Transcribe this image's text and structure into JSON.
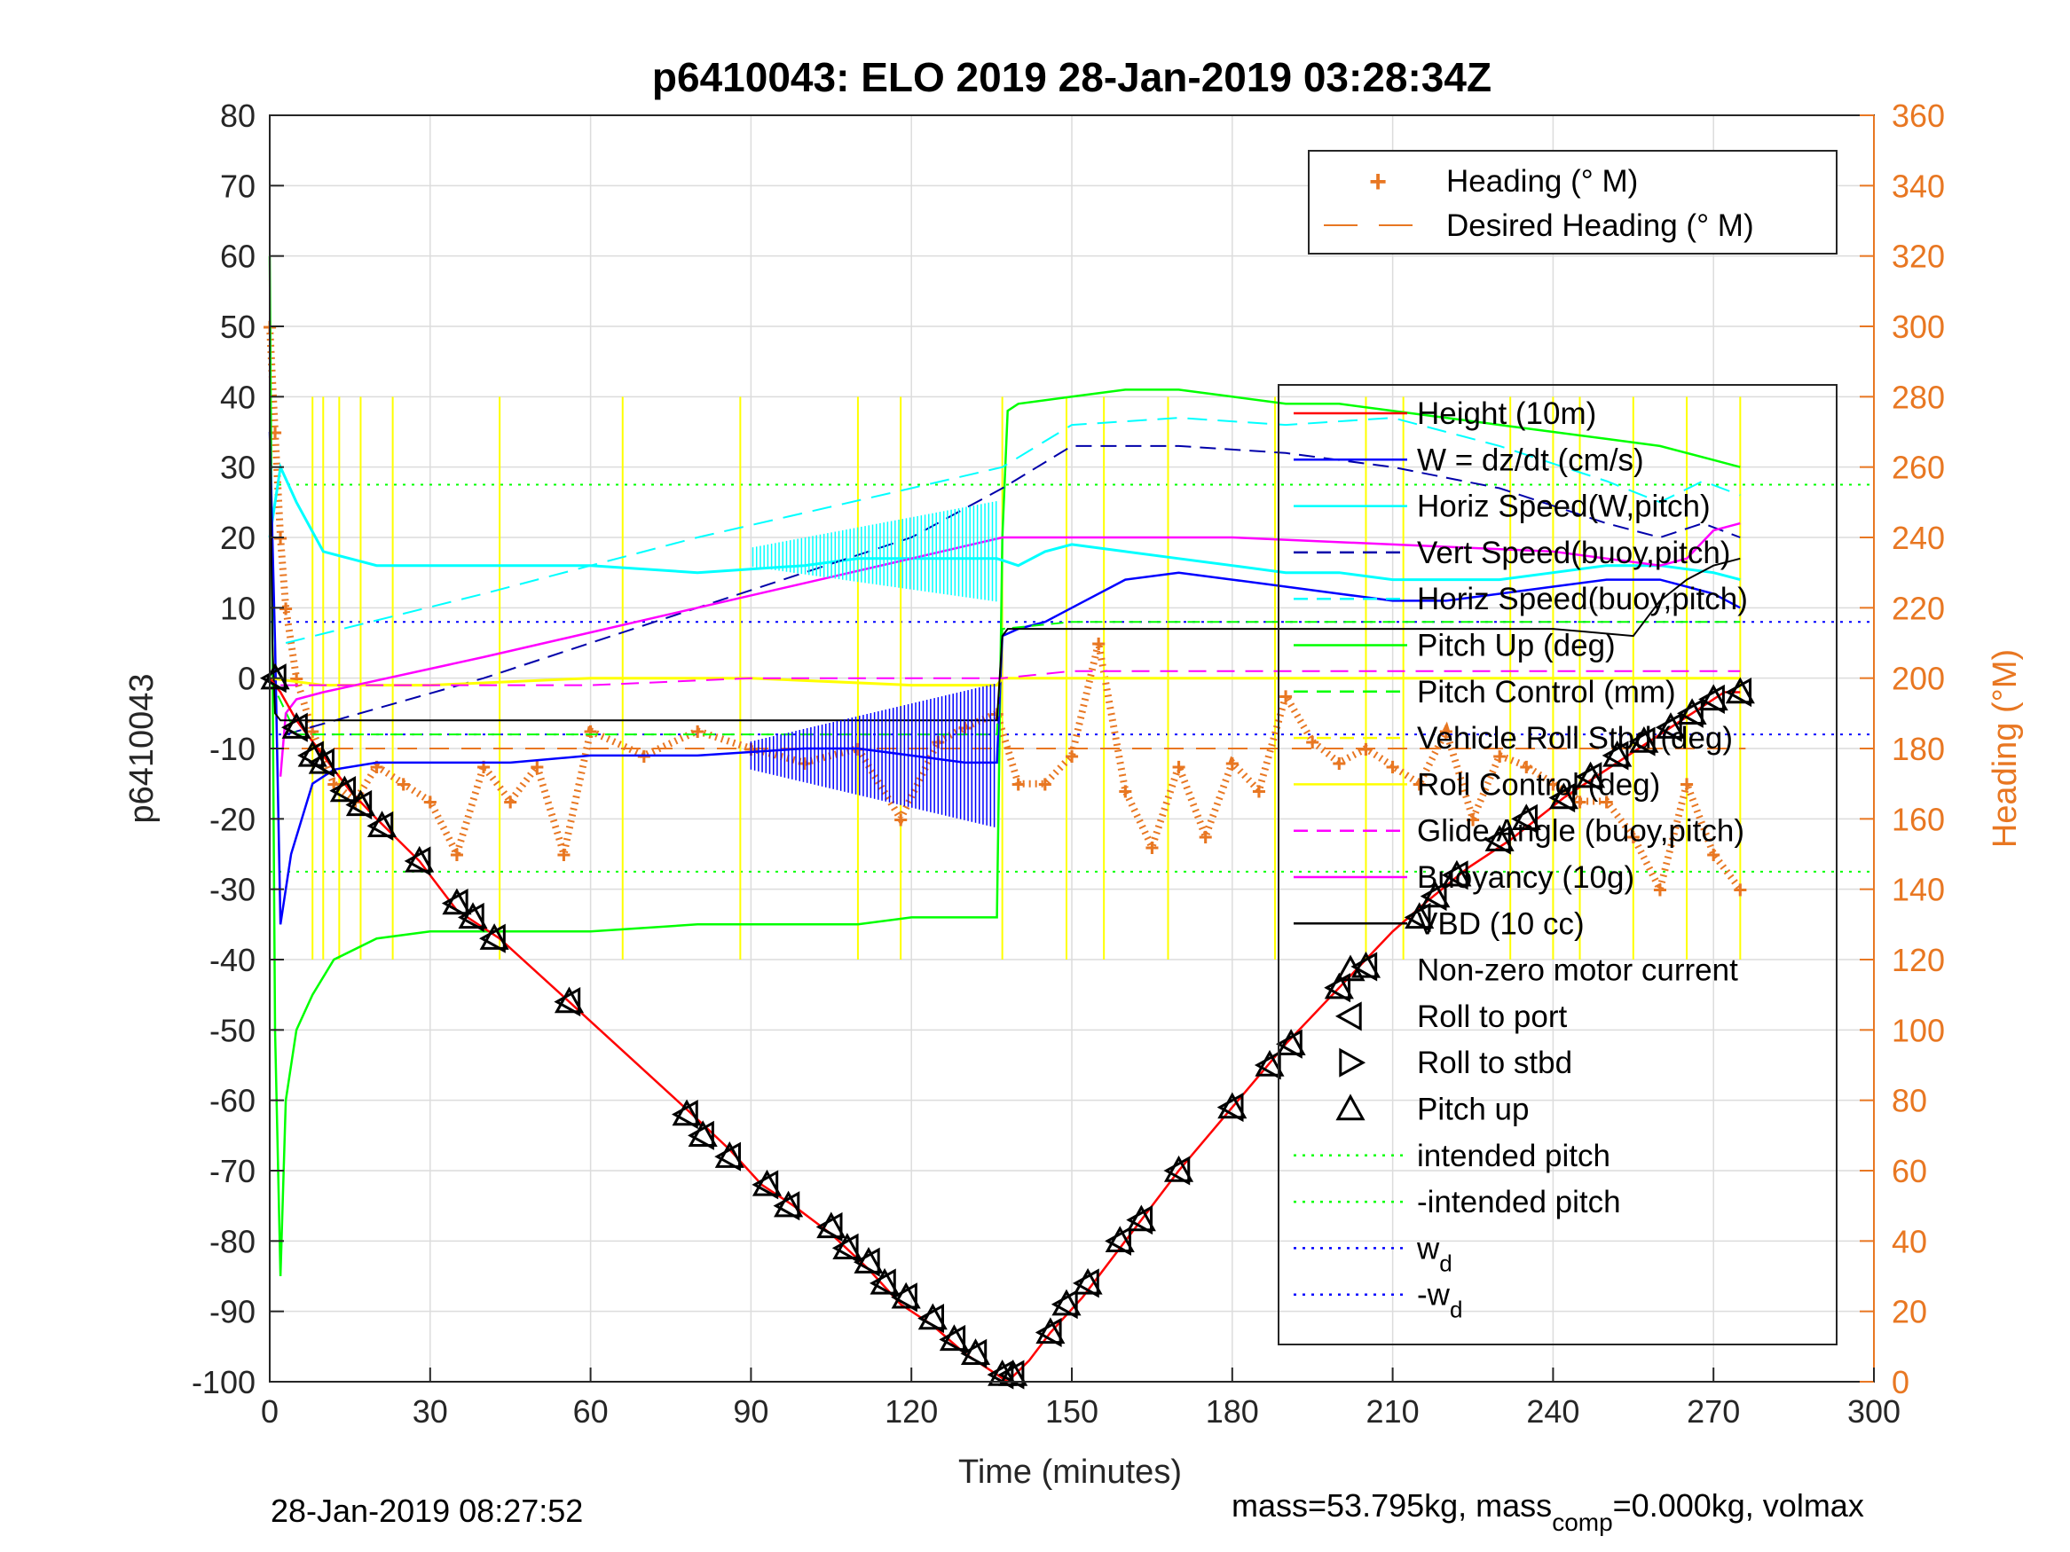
{
  "chart_data": {
    "type": "line",
    "title": "p6410043: ELO 2019 28-Jan-2019 03:28:34Z",
    "xlabel": "Time (minutes)",
    "ylabel": "p6410043",
    "y2label": "Heading (°M)",
    "xlim": [
      0,
      300
    ],
    "ylim": [
      -100,
      80
    ],
    "y2lim": [
      0,
      360
    ],
    "xticks": [
      "0",
      "30",
      "60",
      "90",
      "120",
      "150",
      "180",
      "210",
      "240",
      "270",
      "300"
    ],
    "yticks": [
      "80",
      "70",
      "60",
      "50",
      "40",
      "30",
      "20",
      "10",
      "0",
      "-10",
      "-20",
      "-30",
      "-40",
      "-50",
      "-60",
      "-70",
      "-80",
      "-90",
      "-100"
    ],
    "y2ticks": [
      "360",
      "340",
      "320",
      "300",
      "280",
      "260",
      "240",
      "220",
      "200",
      "180",
      "160",
      "140",
      "120",
      "100",
      "80",
      "60",
      "40",
      "20",
      "0"
    ],
    "grid": true,
    "colors": {
      "orange": "#e87722",
      "depth": "#ff0000",
      "w": "#0000ff",
      "horiz": "#00ffff",
      "pitch": "#00ff00",
      "roll": "#ffff00",
      "buoy": "#ff00ff",
      "vbd": "#000000"
    },
    "intended_pitch": 27.5,
    "w_d": 8,
    "heading_legend": [
      {
        "label": "Heading (° M)",
        "marker": "+"
      },
      {
        "label": "Desired Heading (° M)",
        "marker": "dash"
      }
    ],
    "main_legend": [
      {
        "label": "Height (10m)"
      },
      {
        "label": "W = dz/dt (cm/s)"
      },
      {
        "label": "Horiz Speed(W,pitch)"
      },
      {
        "label": "Vert Speed(buoy,pitch)"
      },
      {
        "label": "Horiz Speed(buoy,pitch)"
      },
      {
        "label": "Pitch Up (deg)"
      },
      {
        "label": "Pitch Control (mm)"
      },
      {
        "label": "Vehicle Roll Stbd (deg)"
      },
      {
        "label": "Roll Control (deg)"
      },
      {
        "label": "Glide Angle (buoy,pitch)"
      },
      {
        "label": "Buoyancy (10g)"
      },
      {
        "label": "VBD (10 cc)"
      },
      {
        "label": "Non-zero motor current"
      },
      {
        "label": "Roll to port"
      },
      {
        "label": "Roll to stbd"
      },
      {
        "label": "Pitch up"
      },
      {
        "label": "intended pitch"
      },
      {
        "label": "-intended pitch"
      },
      {
        "label": "w",
        "sub": "d"
      },
      {
        "label": "-w",
        "sub": "d"
      }
    ],
    "series": [
      {
        "name": "Height (10m)",
        "x": [
          0,
          2,
          5,
          10,
          15,
          20,
          28,
          35,
          43,
          56,
          79,
          86,
          92,
          98,
          105,
          112,
          118,
          124,
          130,
          134,
          138,
          142,
          146,
          152,
          160,
          170,
          180,
          190,
          200,
          210,
          216,
          224,
          232,
          242,
          252,
          262,
          268,
          272,
          275
        ],
        "y": [
          0,
          -2,
          -6,
          -11,
          -16,
          -20,
          -26,
          -33,
          -37,
          -46,
          -62,
          -67,
          -72,
          -75,
          -79,
          -84,
          -89,
          -92,
          -96,
          -98,
          -100,
          -97,
          -93,
          -88,
          -80,
          -70,
          -61,
          -52,
          -44,
          -36,
          -32,
          -27,
          -23,
          -17,
          -12,
          -7,
          -4,
          -2,
          -2
        ]
      },
      {
        "name": "W = dz/dt (cm/s)",
        "x": [
          0,
          1,
          2,
          4,
          8,
          12,
          20,
          30,
          45,
          60,
          80,
          100,
          110,
          120,
          130,
          136,
          137,
          140,
          145,
          150,
          160,
          170,
          180,
          190,
          200,
          210,
          220,
          230,
          240,
          250,
          260,
          270,
          275
        ],
        "y": [
          35,
          5,
          -35,
          -25,
          -15,
          -13,
          -12,
          -12,
          -12,
          -11,
          -11,
          -10,
          -10,
          -11,
          -12,
          -12,
          6,
          7,
          8,
          10,
          14,
          15,
          14,
          13,
          12,
          11,
          11,
          12,
          13,
          14,
          14,
          12,
          10
        ]
      },
      {
        "name": "Horiz Speed(W,pitch)",
        "x": [
          0,
          2,
          5,
          10,
          20,
          30,
          45,
          60,
          80,
          100,
          110,
          120,
          130,
          136,
          140,
          145,
          150,
          160,
          170,
          180,
          190,
          200,
          210,
          220,
          230,
          240,
          250,
          260,
          270,
          275
        ],
        "y": [
          20,
          30,
          25,
          18,
          16,
          16,
          16,
          16,
          15,
          16,
          17,
          17,
          17,
          17,
          16,
          18,
          19,
          18,
          17,
          16,
          15,
          15,
          14,
          14,
          14,
          15,
          16,
          16,
          15,
          14
        ]
      },
      {
        "name": "Vert Speed(buoy,pitch)",
        "x": [
          3,
          40,
          80,
          120,
          137,
          150,
          170,
          190,
          210,
          230,
          250,
          260,
          268,
          275
        ],
        "y": [
          -8,
          0,
          10,
          20,
          27,
          33,
          33,
          32,
          30,
          27,
          22,
          20,
          22,
          20
        ]
      },
      {
        "name": "Horiz Speed(buoy,pitch)",
        "x": [
          3,
          40,
          80,
          120,
          137,
          150,
          170,
          190,
          210,
          230,
          250,
          260,
          268,
          275
        ],
        "y": [
          5,
          12,
          20,
          27,
          30,
          36,
          37,
          36,
          37,
          33,
          28,
          25,
          28,
          26
        ]
      },
      {
        "name": "Pitch Up (deg)",
        "x": [
          0,
          1,
          2,
          3,
          5,
          8,
          12,
          20,
          30,
          45,
          60,
          80,
          100,
          110,
          120,
          130,
          134,
          136,
          137,
          138,
          140,
          150,
          160,
          170,
          180,
          190,
          200,
          210,
          220,
          230,
          240,
          250,
          260,
          270,
          275
        ],
        "y": [
          60,
          -50,
          -85,
          -60,
          -50,
          -45,
          -40,
          -37,
          -36,
          -36,
          -36,
          -35,
          -35,
          -35,
          -34,
          -34,
          -34,
          -34,
          20,
          38,
          39,
          40,
          41,
          41,
          40,
          39,
          39,
          38,
          37,
          36,
          35,
          34,
          33,
          31,
          30
        ]
      },
      {
        "name": "Pitch Control (mm)",
        "x": [
          0,
          5,
          20,
          60,
          120,
          136,
          137,
          150,
          180,
          210,
          240,
          275
        ],
        "y": [
          0,
          -8,
          -8,
          -8,
          -8,
          -8,
          7,
          8,
          8,
          8,
          8,
          8
        ]
      },
      {
        "name": "Roll Control (deg)",
        "x": [
          0,
          10,
          30,
          60,
          90,
          120,
          136,
          137,
          160,
          180,
          210,
          240,
          275
        ],
        "y": [
          0,
          -1,
          -1,
          0,
          0,
          -1,
          -1,
          0,
          0,
          0,
          0,
          0,
          0
        ]
      },
      {
        "name": "Glide Angle (buoy,pitch)",
        "x": [
          2,
          30,
          60,
          90,
          120,
          137,
          150,
          180,
          210,
          240,
          275
        ],
        "y": [
          -1,
          -1,
          -1,
          0,
          0,
          0,
          1,
          1,
          1,
          1,
          1
        ]
      },
      {
        "name": "Buoyancy (10g)",
        "x": [
          2,
          3,
          5,
          10,
          40,
          80,
          120,
          137,
          150,
          180,
          210,
          240,
          260,
          265,
          270,
          275
        ],
        "y": [
          -14,
          -5,
          -3,
          -2,
          3,
          10,
          17,
          20,
          20,
          20,
          19,
          18,
          16,
          17,
          21,
          22
        ]
      },
      {
        "name": "VBD (10 cc)",
        "x": [
          0,
          0.5,
          1,
          2,
          3,
          5,
          10,
          40,
          80,
          120,
          136,
          137,
          138,
          150,
          180,
          210,
          240,
          255,
          260,
          265,
          270,
          275
        ],
        "y": [
          40,
          5,
          -5,
          -6,
          -6,
          -6,
          -6,
          -6,
          -6,
          -6,
          -6,
          6,
          7,
          7,
          7,
          7,
          7,
          6,
          11,
          14,
          16,
          17
        ]
      },
      {
        "name": "Heading (° M)",
        "x": [
          0,
          1,
          2,
          3,
          5,
          8,
          12,
          16,
          20,
          25,
          30,
          35,
          40,
          45,
          50,
          55,
          60,
          70,
          80,
          90,
          100,
          110,
          118,
          125,
          130,
          136,
          140,
          145,
          150,
          155,
          160,
          165,
          170,
          175,
          180,
          185,
          190,
          195,
          200,
          205,
          210,
          215,
          220,
          225,
          230,
          235,
          240,
          245,
          250,
          255,
          260,
          265,
          270,
          275
        ],
        "y": [
          300,
          270,
          240,
          220,
          200,
          185,
          170,
          165,
          175,
          170,
          165,
          150,
          175,
          165,
          175,
          150,
          185,
          178,
          185,
          180,
          176,
          180,
          160,
          182,
          186,
          190,
          170,
          170,
          178,
          210,
          168,
          152,
          175,
          155,
          176,
          168,
          195,
          182,
          176,
          180,
          175,
          170,
          185,
          160,
          178,
          175,
          170,
          165,
          165,
          155,
          140,
          170,
          150,
          140
        ]
      }
    ],
    "markers": [
      {
        "x": 1,
        "y": 0
      },
      {
        "x": 5,
        "y": -7
      },
      {
        "x": 8,
        "y": -11
      },
      {
        "x": 10,
        "y": -12
      },
      {
        "x": 14,
        "y": -16
      },
      {
        "x": 17,
        "y": -18
      },
      {
        "x": 21,
        "y": -21
      },
      {
        "x": 28,
        "y": -26
      },
      {
        "x": 35,
        "y": -32
      },
      {
        "x": 38,
        "y": -34
      },
      {
        "x": 42,
        "y": -37
      },
      {
        "x": 56,
        "y": -46
      },
      {
        "x": 78,
        "y": -62
      },
      {
        "x": 81,
        "y": -65
      },
      {
        "x": 86,
        "y": -68
      },
      {
        "x": 93,
        "y": -72
      },
      {
        "x": 97,
        "y": -75
      },
      {
        "x": 105,
        "y": -78
      },
      {
        "x": 108,
        "y": -81
      },
      {
        "x": 112,
        "y": -83
      },
      {
        "x": 115,
        "y": -86
      },
      {
        "x": 119,
        "y": -88
      },
      {
        "x": 124,
        "y": -91
      },
      {
        "x": 128,
        "y": -94
      },
      {
        "x": 132,
        "y": -96
      },
      {
        "x": 137,
        "y": -99
      },
      {
        "x": 139,
        "y": -99
      },
      {
        "x": 146,
        "y": -93
      },
      {
        "x": 149,
        "y": -89
      },
      {
        "x": 153,
        "y": -86
      },
      {
        "x": 159,
        "y": -80
      },
      {
        "x": 163,
        "y": -77
      },
      {
        "x": 170,
        "y": -70
      },
      {
        "x": 180,
        "y": -61
      },
      {
        "x": 187,
        "y": -55
      },
      {
        "x": 191,
        "y": -52
      },
      {
        "x": 200,
        "y": -44
      },
      {
        "x": 205,
        "y": -41
      },
      {
        "x": 215,
        "y": -34
      },
      {
        "x": 218,
        "y": -31
      },
      {
        "x": 222,
        "y": -28
      },
      {
        "x": 230,
        "y": -23
      },
      {
        "x": 235,
        "y": -20
      },
      {
        "x": 242,
        "y": -17
      },
      {
        "x": 247,
        "y": -14
      },
      {
        "x": 252,
        "y": -11
      },
      {
        "x": 257,
        "y": -9
      },
      {
        "x": 262,
        "y": -7
      },
      {
        "x": 266,
        "y": -5
      },
      {
        "x": 270,
        "y": -3
      },
      {
        "x": 275,
        "y": -2
      }
    ]
  },
  "footer": {
    "timestamp": "28-Jan-2019 08:27:52",
    "mass_prefix": "mass=53.795kg, mass",
    "mass_sub": "comp",
    "mass_suffix": "=0.000kg, volmax"
  }
}
